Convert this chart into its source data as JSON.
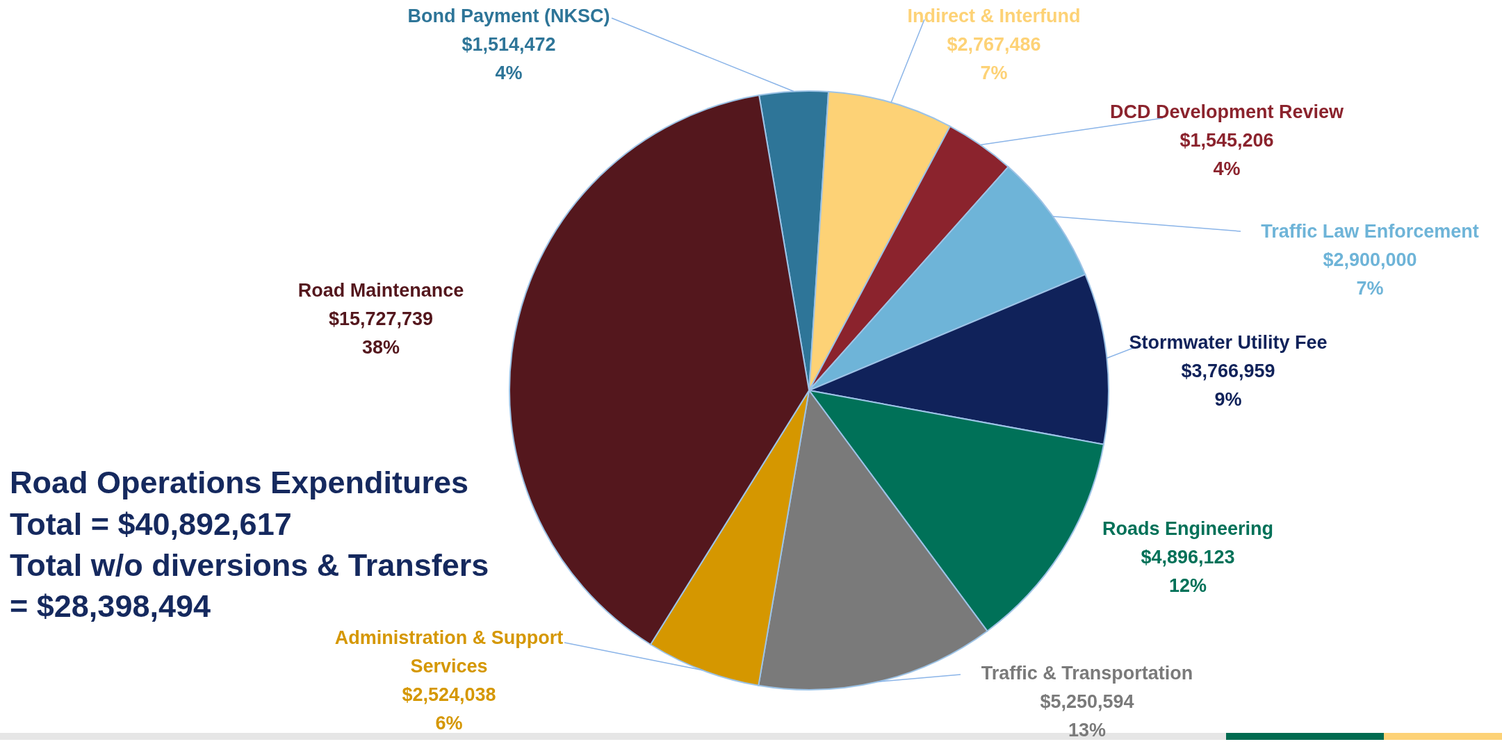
{
  "chart_data": {
    "type": "pie",
    "title": "Road Operations Expenditures",
    "categories": [
      "Bond Payment (NKSC)",
      "Indirect & Interfund",
      "DCD Development Review",
      "Traffic Law Enforcement",
      "Stormwater Utility Fee",
      "Roads Engineering",
      "Traffic & Transportation",
      "Administration & Support Services",
      "Road Maintenance"
    ],
    "values": [
      1514472,
      2767486,
      1545206,
      2900000,
      3766959,
      4896123,
      5250594,
      2524038,
      15727739
    ],
    "colors": [
      "#2e7598",
      "#fdd276",
      "#8b232d",
      "#6eb4d8",
      "#10225a",
      "#007158",
      "#7a7a7a",
      "#d59700",
      "#54171d"
    ],
    "value_labels": [
      "$1,514,472\n4%",
      "$2,767,486\n7%",
      "$1,545,206\n4%",
      "$2,900,000\n7%",
      "$3,766,959\n9%",
      "$4,896,123\n12%",
      "$5,250,594\n13%",
      "$2,524,038\n6%",
      "$15,727,739\n38%"
    ],
    "annotations": [
      "Total = $40,892,617",
      "Total w/o diversions & Transfers",
      "= $28,398,494"
    ]
  }
}
